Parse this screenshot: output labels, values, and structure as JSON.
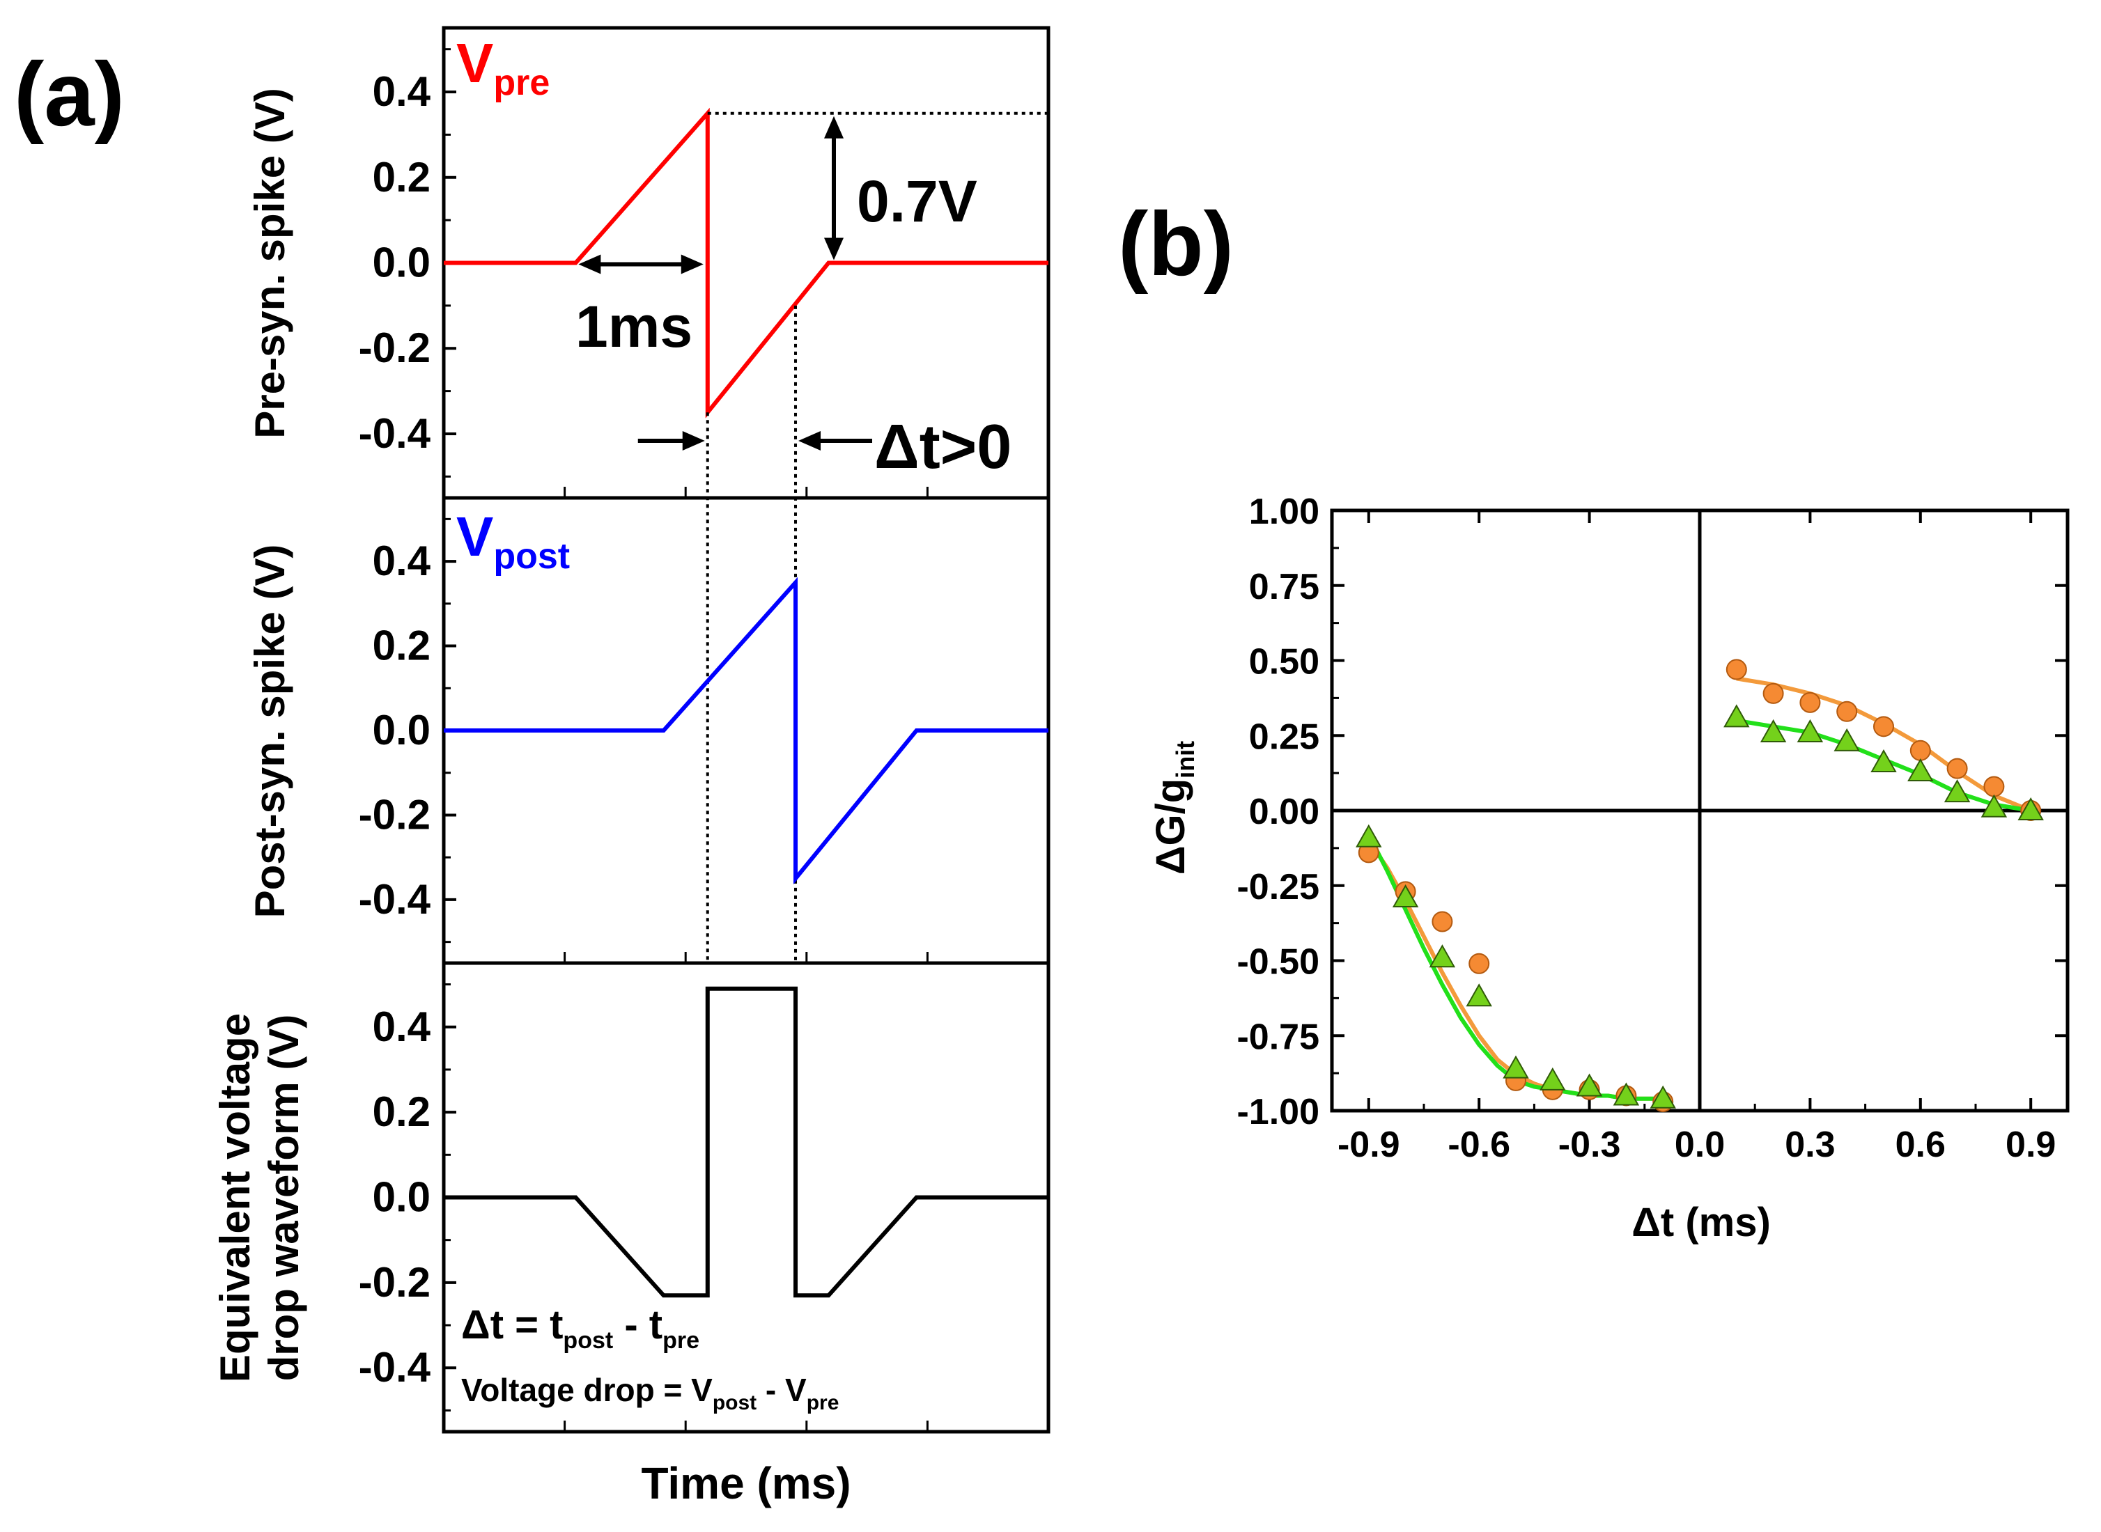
{
  "colors": {
    "pre": "#ff0000",
    "post": "#0000ff",
    "drop": "#000000",
    "fit_orange": "#f39a3b",
    "fit_green": "#22e01a",
    "circle_fill": "#f58a33",
    "triangle_fill": "#74d11b"
  },
  "panel_a": {
    "label": "(a)",
    "x_title": "Time (ms)",
    "pre": {
      "ylabel": "Pre-syn. spike (V)",
      "title_main": "V",
      "title_sub": "pre",
      "yticks": [
        "0.4",
        "0.2",
        "0.0",
        "-0.2",
        "-0.4"
      ],
      "ylim": [
        -0.55,
        0.55
      ],
      "xlim": [
        0,
        5.5
      ],
      "waveform_t": [
        0,
        1.2,
        2.4,
        2.4,
        3.5,
        5.5
      ],
      "waveform_v": [
        0,
        0,
        0.35,
        -0.35,
        0,
        0
      ],
      "ref_level": 0.35,
      "dash_start_t": 2.4,
      "width_label": "1ms",
      "amp_label": "0.7V",
      "dt_label": "Δt>0"
    },
    "post": {
      "ylabel": "Post-syn. spike (V)",
      "title_main": "V",
      "title_sub": "post",
      "yticks": [
        "0.4",
        "0.2",
        "0.0",
        "-0.2",
        "-0.4"
      ],
      "ylim": [
        -0.55,
        0.55
      ],
      "xlim": [
        0,
        5.5
      ],
      "waveform_t": [
        0,
        2.0,
        3.2,
        3.2,
        4.3,
        5.5
      ],
      "waveform_v": [
        0,
        0,
        0.35,
        -0.35,
        0,
        0
      ]
    },
    "drop": {
      "ylabel_line1": "Equivalent voltage",
      "ylabel_line2": "drop waveform (V)",
      "yticks": [
        "0.4",
        "0.2",
        "0.0",
        "-0.2",
        "-0.4"
      ],
      "ylim": [
        -0.55,
        0.55
      ],
      "xlim": [
        0,
        5.5
      ],
      "waveform_t": [
        0,
        1.2,
        2.0,
        2.4,
        2.4,
        3.2,
        3.2,
        3.5,
        4.3,
        5.5
      ],
      "waveform_v": [
        0,
        0,
        -0.23,
        -0.23,
        0.49,
        0.49,
        -0.23,
        -0.23,
        0,
        0
      ],
      "eq1": {
        "pre": "Δt = t",
        "s1": "post",
        "mid": " - t",
        "s2": "pre"
      },
      "eq2": {
        "pre": "Voltage drop = V",
        "s1": "post",
        "mid": " - V",
        "s2": "pre"
      }
    },
    "markers_t": [
      2.4,
      3.2
    ]
  },
  "chart_data": {
    "type": "scatter",
    "panel_label": "(b)",
    "xlabel": "Δt (ms)",
    "ylabel": "ΔG/g",
    "ylabel_sub": "init",
    "xlim": [
      -1.0,
      1.0
    ],
    "ylim": [
      -1.0,
      1.0
    ],
    "xticks": [
      "-0.9",
      "-0.6",
      "-0.3",
      "0.0",
      "0.3",
      "0.6",
      "0.9"
    ],
    "xtick_values": [
      -0.9,
      -0.6,
      -0.3,
      0.0,
      0.3,
      0.6,
      0.9
    ],
    "yticks": [
      "1.00",
      "0.75",
      "0.50",
      "0.25",
      "0.00",
      "-0.25",
      "-0.50",
      "-0.75",
      "-1.00"
    ],
    "ytick_values": [
      1.0,
      0.75,
      0.5,
      0.25,
      0.0,
      -0.25,
      -0.5,
      -0.75,
      -1.0
    ],
    "series": [
      {
        "name": "circles",
        "marker": "circle",
        "x": [
          -0.9,
          -0.8,
          -0.7,
          -0.6,
          -0.5,
          -0.4,
          -0.3,
          -0.2,
          -0.1,
          0.1,
          0.2,
          0.3,
          0.4,
          0.5,
          0.6,
          0.7,
          0.8,
          0.9
        ],
        "y": [
          -0.14,
          -0.27,
          -0.37,
          -0.51,
          -0.9,
          -0.93,
          -0.93,
          -0.95,
          -0.97,
          0.47,
          0.39,
          0.36,
          0.33,
          0.28,
          0.2,
          0.14,
          0.08,
          0.0
        ]
      },
      {
        "name": "triangles",
        "marker": "triangle",
        "x": [
          -0.9,
          -0.8,
          -0.7,
          -0.6,
          -0.5,
          -0.4,
          -0.3,
          -0.2,
          -0.1,
          0.1,
          0.2,
          0.3,
          0.4,
          0.5,
          0.6,
          0.7,
          0.8,
          0.9
        ],
        "y": [
          -0.09,
          -0.29,
          -0.49,
          -0.62,
          -0.86,
          -0.9,
          -0.92,
          -0.95,
          -0.96,
          0.31,
          0.26,
          0.26,
          0.23,
          0.16,
          0.13,
          0.06,
          0.01,
          0.0
        ]
      }
    ],
    "fits": [
      {
        "name": "orange-fit",
        "x": [
          -0.9,
          -0.85,
          -0.8,
          -0.75,
          -0.7,
          -0.65,
          -0.6,
          -0.55,
          -0.5,
          -0.45,
          -0.4,
          -0.35,
          -0.3,
          -0.25,
          -0.2,
          -0.15,
          -0.1,
          0.1,
          0.2,
          0.3,
          0.4,
          0.5,
          0.6,
          0.7,
          0.8,
          0.9
        ],
        "y": [
          -0.1,
          -0.19,
          -0.3,
          -0.42,
          -0.54,
          -0.65,
          -0.75,
          -0.83,
          -0.88,
          -0.91,
          -0.93,
          -0.94,
          -0.95,
          -0.95,
          -0.96,
          -0.96,
          -0.96,
          0.44,
          0.42,
          0.39,
          0.35,
          0.29,
          0.22,
          0.13,
          0.05,
          0.0
        ]
      },
      {
        "name": "green-fit",
        "x": [
          -0.9,
          -0.85,
          -0.8,
          -0.75,
          -0.7,
          -0.65,
          -0.6,
          -0.55,
          -0.5,
          -0.45,
          -0.4,
          -0.35,
          -0.3,
          -0.25,
          -0.2,
          -0.15,
          -0.1,
          0.1,
          0.2,
          0.3,
          0.4,
          0.5,
          0.6,
          0.7,
          0.8,
          0.9
        ],
        "y": [
          -0.08,
          -0.2,
          -0.33,
          -0.46,
          -0.58,
          -0.69,
          -0.78,
          -0.85,
          -0.9,
          -0.92,
          -0.93,
          -0.94,
          -0.95,
          -0.95,
          -0.96,
          -0.96,
          -0.96,
          0.3,
          0.28,
          0.26,
          0.22,
          0.17,
          0.12,
          0.06,
          0.02,
          0.0
        ]
      }
    ]
  }
}
